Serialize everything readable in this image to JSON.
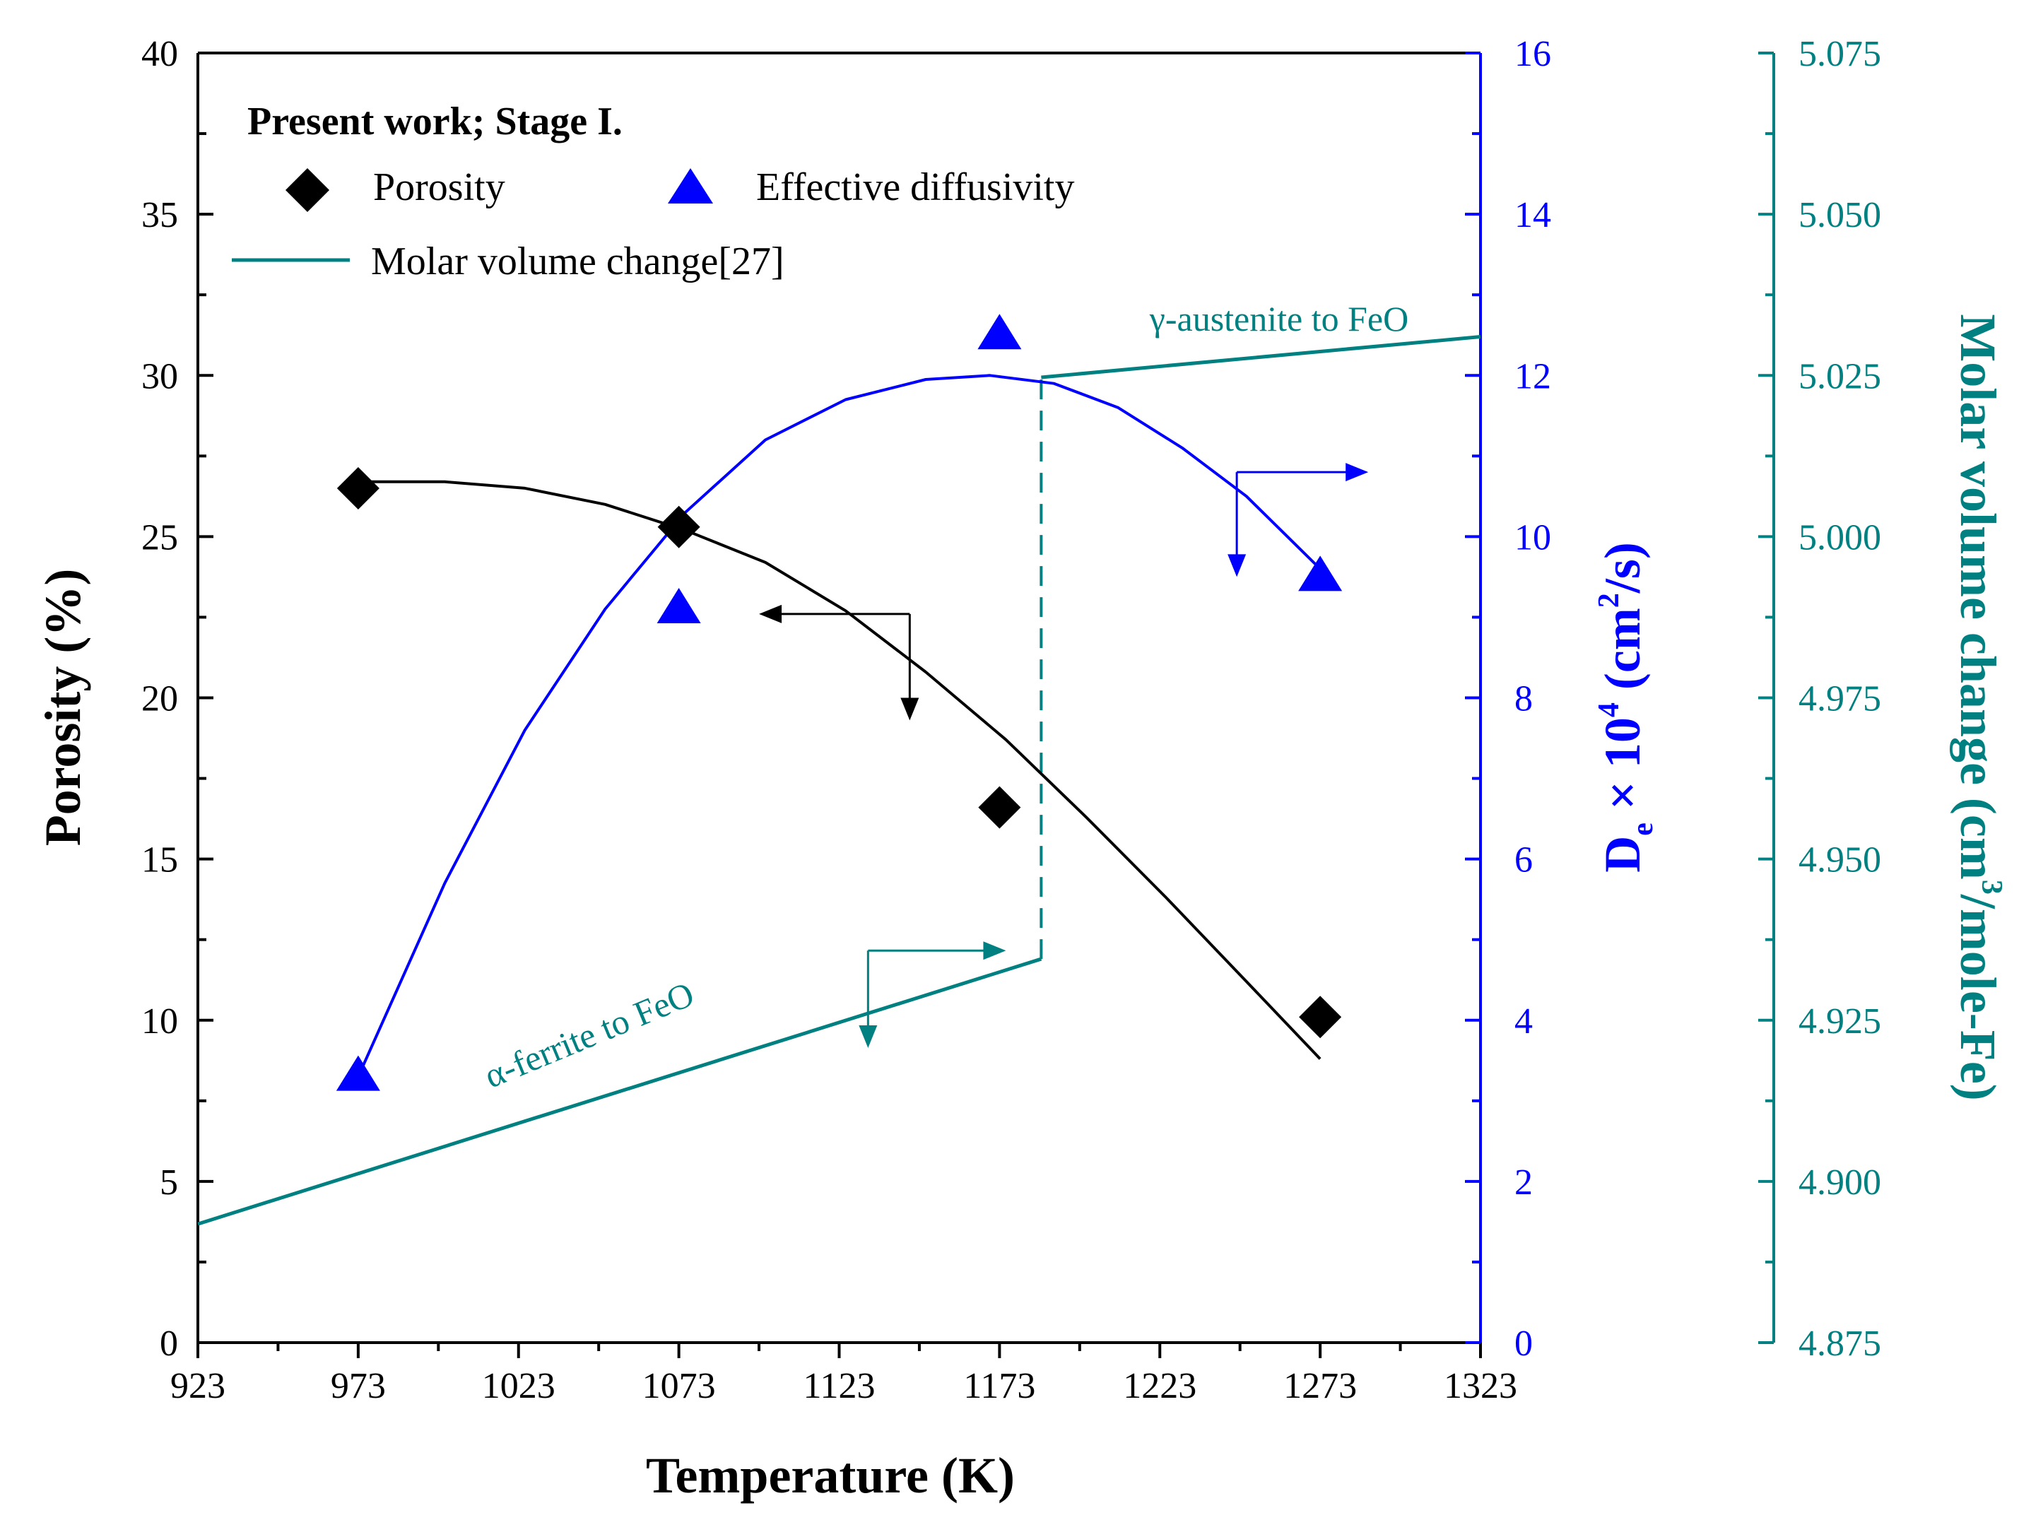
{
  "chart_data": {
    "type": "scatter",
    "title": "",
    "xlabel": "Temperature (K)",
    "ylabel_left": "Porosity (%)",
    "ylabel_right1": {
      "main": "D",
      "sub": "e",
      "mid": " × 10",
      "sup1": "4",
      "post1": " (cm",
      "sup2": "2",
      "post2": "/s)"
    },
    "ylabel_right2": {
      "pre": "Molar volume change (cm",
      "sup": "3",
      "post": "/mole-Fe)"
    },
    "x_ticks": [
      "923",
      "973",
      "1023",
      "1073",
      "1123",
      "1173",
      "1223",
      "1273",
      "1323"
    ],
    "xlim": [
      923,
      1323
    ],
    "y_left_ticks": [
      "0",
      "5",
      "10",
      "15",
      "20",
      "25",
      "30",
      "35",
      "40"
    ],
    "ylim_left": [
      0,
      40
    ],
    "y_right1_ticks": [
      "0",
      "2",
      "4",
      "6",
      "8",
      "10",
      "12",
      "14",
      "16"
    ],
    "ylim_right1": [
      0,
      16
    ],
    "y_right2_ticks": [
      "4.875",
      "4.900",
      "4.925",
      "4.950",
      "4.975",
      "5.000",
      "5.025",
      "5.050",
      "5.075"
    ],
    "ylim_right2": [
      4.875,
      5.075
    ],
    "legend": {
      "title": "Present work; Stage I.",
      "porosity": "Porosity",
      "diffusivity": "Effective diffusivity",
      "molar": "Molar volume change[27]"
    },
    "series": [
      {
        "name": "Porosity",
        "marker": "diamond",
        "axis": "left",
        "color": "#000000",
        "x": [
          973,
          1073,
          1173,
          1273
        ],
        "y": [
          26.5,
          25.3,
          16.6,
          10.1
        ]
      },
      {
        "name": "Effective diffusivity",
        "marker": "triangle",
        "axis": "right1",
        "color": "#0000ff",
        "x": [
          973,
          1073,
          1173,
          1273
        ],
        "y": [
          3.3,
          9.1,
          12.5,
          9.5
        ]
      }
    ],
    "fits": [
      {
        "name": "Porosity fit",
        "axis": "left",
        "color": "#000000",
        "x": [
          973,
          1000,
          1025,
          1050,
          1075,
          1100,
          1125,
          1150,
          1175,
          1200,
          1225,
          1250,
          1273
        ],
        "y": [
          26.7,
          26.7,
          26.5,
          26.0,
          25.2,
          24.2,
          22.7,
          20.8,
          18.7,
          16.3,
          13.8,
          11.2,
          8.8
        ]
      },
      {
        "name": "Diffusivity fit",
        "axis": "right1",
        "color": "#0000ff",
        "x": [
          973,
          1000,
          1025,
          1050,
          1075,
          1100,
          1125,
          1150,
          1170,
          1190,
          1210,
          1230,
          1250,
          1273
        ],
        "y": [
          3.3,
          5.7,
          7.6,
          9.1,
          10.3,
          11.2,
          11.7,
          11.95,
          12.0,
          11.9,
          11.6,
          11.1,
          10.5,
          9.6
        ]
      }
    ],
    "molar_volume": {
      "color": "#008080",
      "alpha_segment": {
        "x": [
          923,
          1186
        ],
        "y": [
          4.8934,
          4.9345
        ]
      },
      "gamma_segment": {
        "x": [
          1186,
          1323
        ],
        "y": [
          5.0247,
          5.031
        ]
      },
      "transition_x": 1186,
      "alpha_label": "α-ferrite to FeO",
      "gamma_label": "γ-austenite to FeO"
    },
    "arrows": [
      {
        "color": "#000000",
        "axis": "left",
        "x": 1145,
        "y": 22.6,
        "horizontal_to": 1098,
        "vertical_to": 19.3
      },
      {
        "color": "#0000ff",
        "axis": "right1",
        "x": 1247,
        "y": 10.8,
        "horizontal_to": 1288,
        "vertical_to": 9.5
      },
      {
        "color": "#008080",
        "axis": "right2",
        "x": 1132,
        "y": 4.9358,
        "horizontal_to": 1175,
        "vertical_to": 4.9207
      }
    ]
  }
}
